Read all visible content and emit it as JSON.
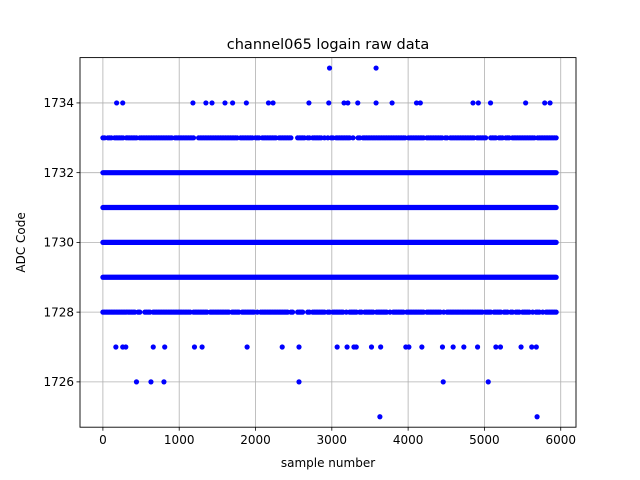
{
  "chart_data": {
    "type": "scatter",
    "title": "channel065 logain raw data",
    "xlabel": "sample number",
    "ylabel": "ADC Code",
    "xlim": [
      -300,
      6200
    ],
    "ylim": [
      1724.7,
      1735.3
    ],
    "xticks": [
      0,
      1000,
      2000,
      3000,
      4000,
      5000,
      6000
    ],
    "yticks": [
      1726,
      1728,
      1730,
      1732,
      1734
    ],
    "grid": true,
    "marker_color": "#0000ff",
    "dense_levels": [
      {
        "y": 1729,
        "x_range": [
          0,
          5940
        ]
      },
      {
        "y": 1730,
        "x_range": [
          0,
          5940
        ]
      },
      {
        "y": 1731,
        "x_range": [
          0,
          5940
        ]
      },
      {
        "y": 1732,
        "x_range": [
          0,
          5940
        ]
      }
    ],
    "series": [
      {
        "values": [
          {
            "x": 2970,
            "y": 1735
          },
          {
            "x": 3580,
            "y": 1735
          },
          {
            "x": 180,
            "y": 1734
          },
          {
            "x": 260,
            "y": 1734
          },
          {
            "x": 1180,
            "y": 1734
          },
          {
            "x": 1350,
            "y": 1734
          },
          {
            "x": 1430,
            "y": 1734
          },
          {
            "x": 1600,
            "y": 1734
          },
          {
            "x": 1700,
            "y": 1734
          },
          {
            "x": 1880,
            "y": 1734
          },
          {
            "x": 2170,
            "y": 1734
          },
          {
            "x": 2230,
            "y": 1734
          },
          {
            "x": 2700,
            "y": 1734
          },
          {
            "x": 2960,
            "y": 1734
          },
          {
            "x": 3160,
            "y": 1734
          },
          {
            "x": 3210,
            "y": 1734
          },
          {
            "x": 3340,
            "y": 1734
          },
          {
            "x": 3580,
            "y": 1734
          },
          {
            "x": 3790,
            "y": 1734
          },
          {
            "x": 4110,
            "y": 1734
          },
          {
            "x": 4160,
            "y": 1734
          },
          {
            "x": 4850,
            "y": 1734
          },
          {
            "x": 4920,
            "y": 1734
          },
          {
            "x": 5080,
            "y": 1734
          },
          {
            "x": 5540,
            "y": 1734
          },
          {
            "x": 5790,
            "y": 1734
          },
          {
            "x": 5860,
            "y": 1734
          },
          {
            "x": 170,
            "y": 1727
          },
          {
            "x": 260,
            "y": 1727
          },
          {
            "x": 300,
            "y": 1727
          },
          {
            "x": 660,
            "y": 1727
          },
          {
            "x": 810,
            "y": 1727
          },
          {
            "x": 1200,
            "y": 1727
          },
          {
            "x": 1300,
            "y": 1727
          },
          {
            "x": 1890,
            "y": 1727
          },
          {
            "x": 2350,
            "y": 1727
          },
          {
            "x": 2570,
            "y": 1727
          },
          {
            "x": 3070,
            "y": 1727
          },
          {
            "x": 3200,
            "y": 1727
          },
          {
            "x": 3290,
            "y": 1727
          },
          {
            "x": 3320,
            "y": 1727
          },
          {
            "x": 3520,
            "y": 1727
          },
          {
            "x": 3640,
            "y": 1727
          },
          {
            "x": 3970,
            "y": 1727
          },
          {
            "x": 4010,
            "y": 1727
          },
          {
            "x": 4180,
            "y": 1727
          },
          {
            "x": 4450,
            "y": 1727
          },
          {
            "x": 4590,
            "y": 1727
          },
          {
            "x": 4730,
            "y": 1727
          },
          {
            "x": 4910,
            "y": 1727
          },
          {
            "x": 5150,
            "y": 1727
          },
          {
            "x": 5210,
            "y": 1727
          },
          {
            "x": 5480,
            "y": 1727
          },
          {
            "x": 5620,
            "y": 1727
          },
          {
            "x": 5680,
            "y": 1727
          },
          {
            "x": 440,
            "y": 1726
          },
          {
            "x": 630,
            "y": 1726
          },
          {
            "x": 800,
            "y": 1726
          },
          {
            "x": 2570,
            "y": 1726
          },
          {
            "x": 4460,
            "y": 1726
          },
          {
            "x": 5050,
            "y": 1726
          },
          {
            "x": 3630,
            "y": 1725
          },
          {
            "x": 5690,
            "y": 1725
          }
        ]
      }
    ]
  }
}
